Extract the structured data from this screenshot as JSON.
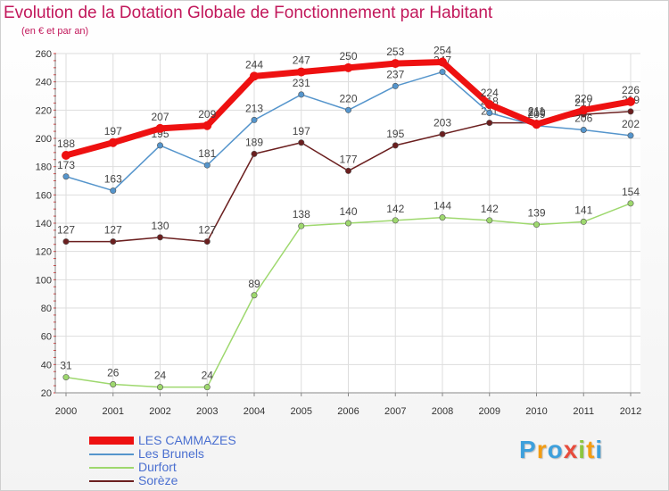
{
  "title": "Evolution de la Dotation Globale de Fonctionnement par Habitant",
  "subtitle": "(en € et par an)",
  "logo": {
    "text": "Proxiti",
    "letters": [
      "P",
      "r",
      "o",
      "x",
      "i",
      "t",
      "i"
    ],
    "colors": [
      "#3ea0dc",
      "#f39c12",
      "#3ea0dc",
      "#e74c3c",
      "#8cc63f",
      "#f39c12",
      "#3ea0dc"
    ]
  },
  "chart_data": {
    "type": "line",
    "title": "Evolution de la Dotation Globale de Fonctionnement par Habitant",
    "ylabel": "(en € et par an)",
    "xlabel": "",
    "x": [
      "2000",
      "2001",
      "2002",
      "2003",
      "2004",
      "2005",
      "2006",
      "2007",
      "2008",
      "2009",
      "2010",
      "2011",
      "2012"
    ],
    "ylim": [
      20,
      260
    ],
    "yticks": [
      20,
      40,
      60,
      80,
      100,
      120,
      140,
      160,
      180,
      200,
      220,
      240,
      260
    ],
    "grid": true,
    "series": [
      {
        "name": "Sorèze",
        "color": "#6b1f1f",
        "values": [
          127,
          127,
          130,
          127,
          189,
          197,
          177,
          195,
          203,
          211,
          211,
          217,
          219
        ],
        "labels": [
          "127",
          "127",
          "130",
          "127",
          "189",
          "197",
          "177",
          "195",
          "203",
          "211",
          "211",
          "217",
          "219"
        ]
      },
      {
        "name": "Durfort",
        "color": "#9ed86e",
        "values": [
          31,
          26,
          24,
          24,
          89,
          138,
          140,
          142,
          144,
          142,
          139,
          141,
          154
        ],
        "labels": [
          "31",
          "26",
          "24",
          "24",
          "89",
          "138",
          "140",
          "142",
          "144",
          "142",
          "139",
          "141",
          "154"
        ]
      },
      {
        "name": "Les Brunels",
        "color": "#5595cc",
        "values": [
          173,
          163,
          195,
          181,
          213,
          231,
          220,
          237,
          247,
          218,
          209,
          206,
          202
        ],
        "labels": [
          "173",
          "163",
          "195",
          "181",
          "213",
          "231",
          "220",
          "237",
          "247",
          "218",
          "209",
          "206",
          "202"
        ]
      },
      {
        "name": "LES CAMMAZES",
        "color": "#ee1111",
        "values": [
          188,
          197,
          207,
          209,
          244,
          247,
          250,
          253,
          254,
          224,
          210,
          220,
          226
        ],
        "labels": [
          "188",
          "197",
          "207",
          "209",
          "244",
          "247",
          "250",
          "253",
          "254",
          "224",
          "210",
          "220",
          "226"
        ]
      }
    ],
    "legend": {
      "position": "bottom-left",
      "entries": [
        "LES CAMMAZES",
        "Les Brunels",
        "Durfort",
        "Sorèze"
      ]
    }
  }
}
